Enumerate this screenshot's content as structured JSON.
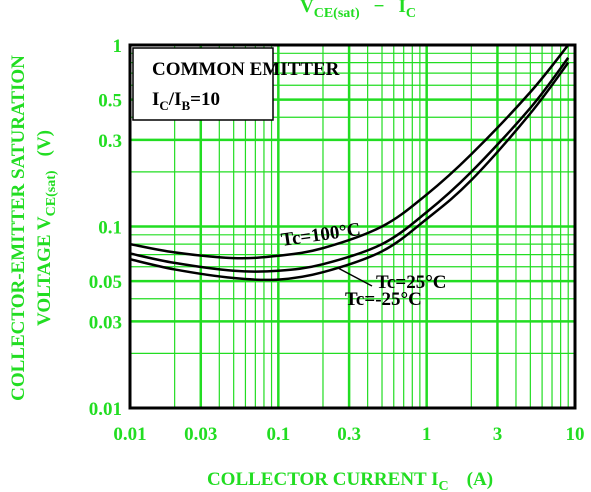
{
  "chart_data": {
    "type": "line",
    "title": [
      "V",
      "CE(sat)",
      "−",
      "I",
      "C"
    ],
    "y_label": [
      "COLLECTOR-EMITTER SATURATION",
      "VOLTAGE V",
      "CE(sat)",
      "(V)"
    ],
    "x_label": [
      "COLLECTOR CURRENT I",
      "C",
      "(A)"
    ],
    "annotations": [
      "COMMON EMITTER",
      "I",
      "C",
      "/I",
      "B",
      "=10"
    ],
    "log_x": true,
    "log_y": true,
    "grid": true,
    "grid_color": "#22dd22",
    "line_color": "#000000",
    "xlim": [
      0.01,
      10
    ],
    "ylim": [
      0.01,
      1
    ],
    "xticks": [
      0.01,
      0.03,
      0.1,
      0.3,
      1,
      3,
      10
    ],
    "yticks": [
      0.01,
      0.03,
      0.05,
      0.1,
      0.3,
      0.5,
      1
    ],
    "xminor": [
      0.02,
      0.04,
      0.05,
      0.06,
      0.07,
      0.08,
      0.09,
      0.2,
      0.4,
      0.5,
      0.6,
      0.7,
      0.8,
      0.9,
      2,
      4,
      5,
      6,
      7,
      8,
      9
    ],
    "yminor": [
      0.02,
      0.04,
      0.06,
      0.07,
      0.08,
      0.09,
      0.2,
      0.4,
      0.6,
      0.7,
      0.8,
      0.9
    ],
    "x": [
      0.01,
      0.02,
      0.05,
      0.1,
      0.2,
      0.5,
      1,
      2,
      5,
      9
    ],
    "series": [
      {
        "name": "Tc=100°C",
        "values": [
          0.08,
          0.072,
          0.067,
          0.069,
          0.076,
          0.1,
          0.15,
          0.25,
          0.55,
          1
        ]
      },
      {
        "name": "Tc=25°C",
        "values": [
          0.071,
          0.063,
          0.057,
          0.057,
          0.062,
          0.08,
          0.12,
          0.2,
          0.45,
          0.85
        ]
      },
      {
        "name": "Tc=-25°C",
        "values": [
          0.066,
          0.058,
          0.052,
          0.051,
          0.056,
          0.073,
          0.11,
          0.18,
          0.42,
          0.8
        ]
      }
    ]
  }
}
